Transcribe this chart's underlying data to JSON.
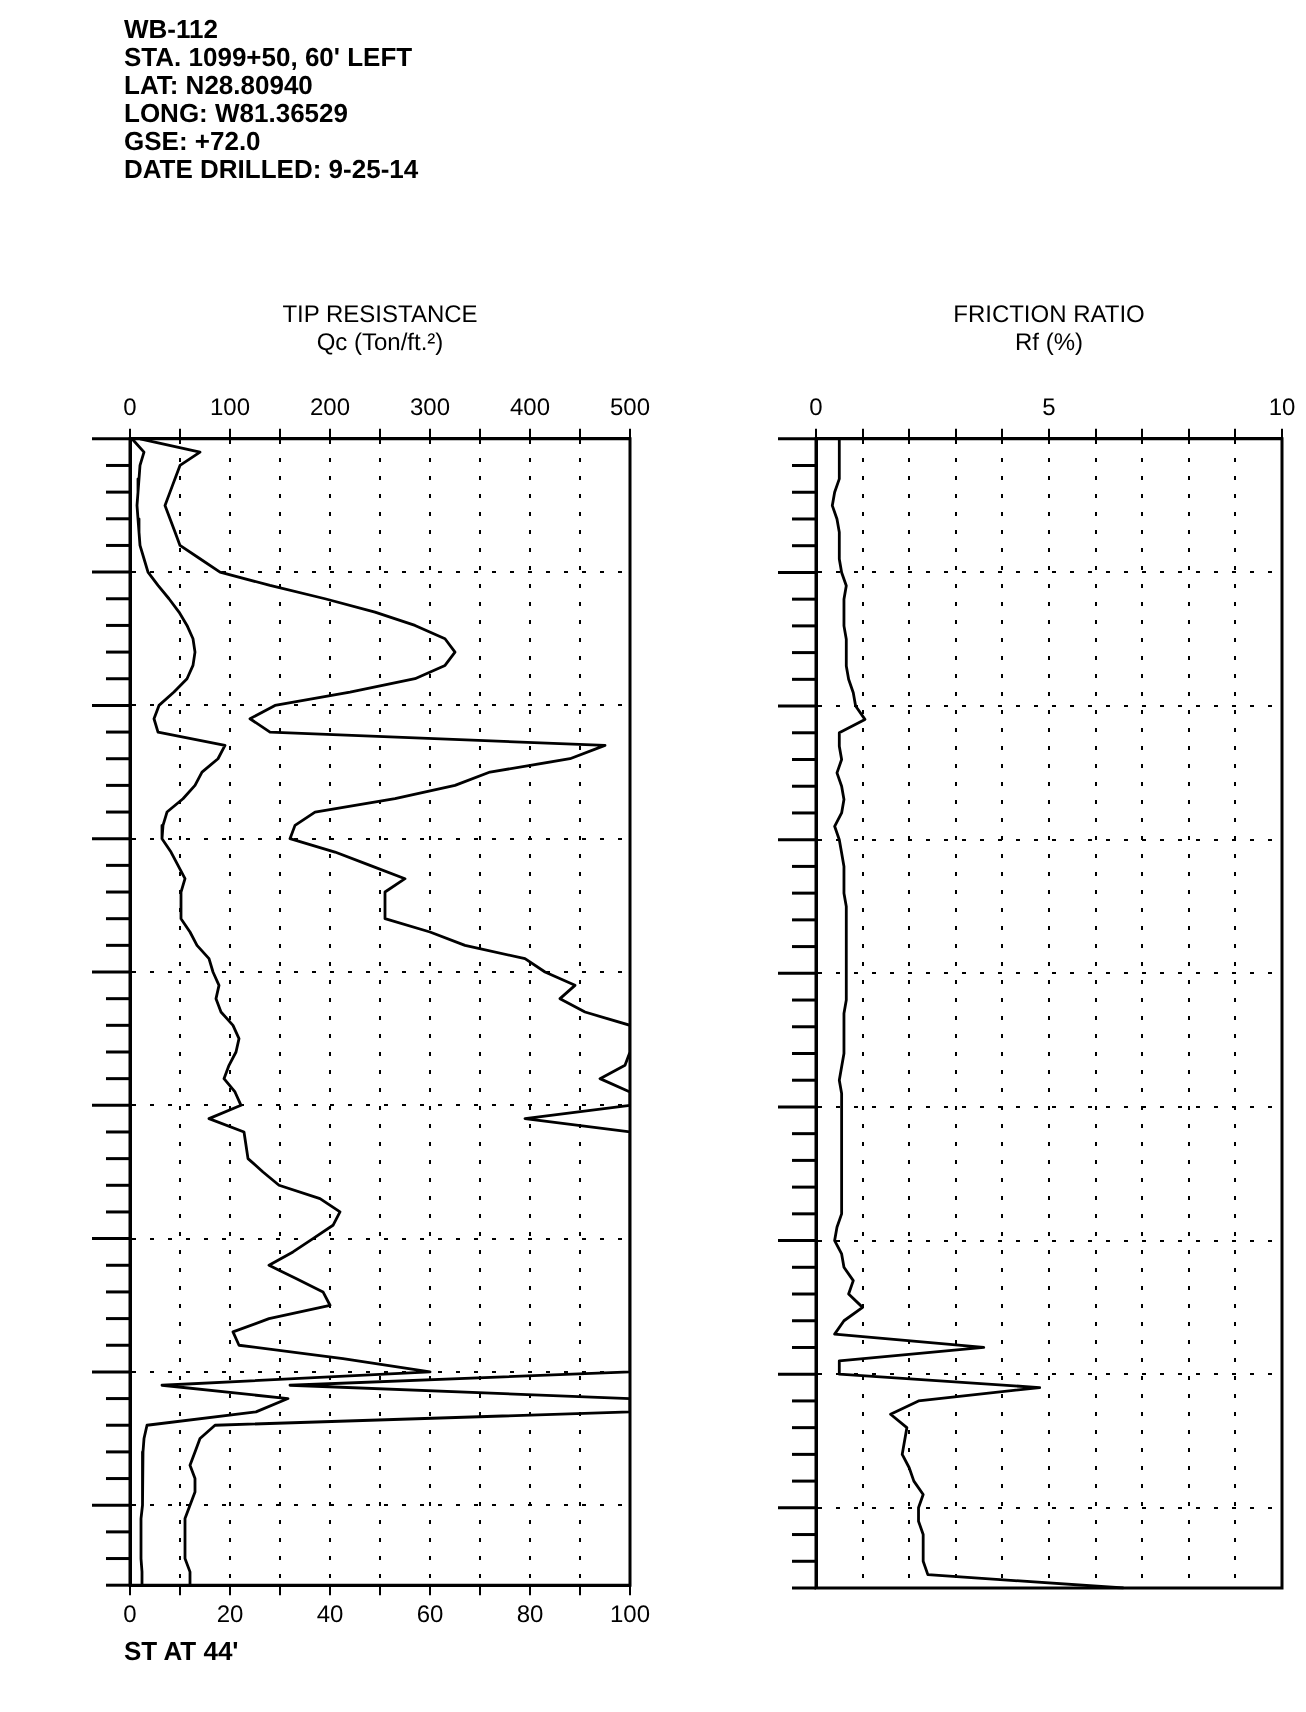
{
  "chart_data": [
    {
      "type": "line",
      "title": "TIP RESISTANCE",
      "subtitle": "Qc (Ton/ft.²)",
      "orientation": "horizontal",
      "tick_labels": "x",
      "grid": true,
      "categories": [
        null,
        null,
        null,
        null,
        null,
        null,
        null,
        null,
        null,
        null,
        null,
        null,
        null,
        null,
        null,
        null,
        null,
        null,
        null,
        null,
        null,
        null,
        null,
        null,
        null,
        null,
        null,
        null,
        null,
        null,
        null,
        null,
        null,
        null,
        null,
        null,
        null,
        null,
        null,
        null,
        null,
        null,
        null,
        null,
        null,
        null,
        null,
        null,
        null,
        null,
        null,
        null,
        null,
        null,
        null,
        null,
        null,
        null,
        null,
        null,
        null,
        null,
        null,
        null,
        null,
        null,
        null,
        null,
        null,
        null,
        null,
        null,
        null,
        null,
        null,
        null,
        null,
        null,
        null,
        null,
        null,
        null,
        null,
        null,
        null,
        null,
        null
      ],
      "xlim": [
        0,
        500
      ],
      "xticks": [
        0,
        {
          "value": 50,
          "label": null
        },
        100,
        {
          "value": 150,
          "label": null
        },
        200,
        {
          "value": 250,
          "label": null
        },
        300,
        {
          "value": 350,
          "label": null
        },
        400,
        {
          "value": 450,
          "label": null
        },
        500
      ],
      "x2lim": [
        0,
        100
      ],
      "x2ticks": [
        0,
        {
          "value": 10,
          "label": null
        },
        20,
        {
          "value": 30,
          "label": null
        },
        40,
        {
          "value": 50,
          "label": null
        },
        60,
        {
          "value": 70,
          "label": null
        },
        80,
        {
          "value": 90,
          "label": null
        },
        100
      ],
      "series": [
        {
          "color": "#000000",
          "values": [
            2,
            14,
            10,
            9,
            8,
            7,
            8,
            9,
            10,
            14,
            18,
            28,
            39,
            49,
            57,
            63,
            65,
            63,
            57,
            44,
            29,
            24,
            28,
            95,
            88,
            72,
            65,
            53,
            37,
            33,
            32,
            41,
            48,
            55,
            51,
            51,
            51,
            60,
            67,
            79,
            83,
            89,
            86,
            91,
            103,
            109,
            106,
            99,
            94,
            105,
            111,
            79,
            114,
            116,
            118,
            133,
            149,
            190,
            210,
            203,
            183,
            163,
            139,
            166,
            193,
            200,
            139,
            103,
            109,
            213,
            300,
            32,
            158,
            126,
            17,
            14,
            13,
            12,
            13,
            13,
            12,
            11,
            11,
            11,
            11,
            12,
            12
          ]
        },
        {
          "color": "#000000",
          "axis": "x2",
          "values": [
            2,
            14,
            10,
            9,
            8,
            7,
            8,
            9,
            10,
            14,
            18,
            28,
            39,
            49,
            57,
            63,
            65,
            63,
            57,
            44,
            29,
            24,
            28,
            95,
            88,
            72,
            65,
            53,
            37,
            33,
            32,
            41,
            48,
            55,
            51,
            51,
            51,
            60,
            67,
            79,
            83,
            89,
            86,
            91,
            100,
            100,
            100,
            99,
            94,
            100,
            100,
            79,
            100,
            100,
            100,
            100,
            100,
            100,
            100,
            100,
            100,
            100,
            100,
            100,
            100,
            100,
            100,
            100,
            100,
            100,
            100,
            32,
            100,
            100,
            17,
            14,
            13,
            12,
            13,
            13,
            12,
            11,
            11,
            11,
            11,
            12,
            12
          ]
        }
      ],
      "annotations": [
        "WB-112",
        "STA. 1099+50, 60' LEFT",
        "LAT: N28.80940",
        "LONG: W81.36529",
        "GSE: +72.0",
        "DATE DRILLED: 9-25-14",
        "ST AT 44'"
      ]
    },
    {
      "type": "line",
      "title": "FRICTION RATIO",
      "subtitle": "Rf (%)",
      "orientation": "horizontal",
      "tick_labels": "x",
      "grid": true,
      "categories": [
        null,
        null,
        null,
        null,
        null,
        null,
        null,
        null,
        null,
        null,
        null,
        null,
        null,
        null,
        null,
        null,
        null,
        null,
        null,
        null,
        null,
        null,
        null,
        null,
        null,
        null,
        null,
        null,
        null,
        null,
        null,
        null,
        null,
        null,
        null,
        null,
        null,
        null,
        null,
        null,
        null,
        null,
        null,
        null,
        null,
        null,
        null,
        null,
        null,
        null,
        null,
        null,
        null,
        null,
        null,
        null,
        null,
        null,
        null,
        null,
        null,
        null,
        null,
        null,
        null,
        null,
        null,
        null,
        null,
        null,
        null,
        null,
        null,
        null,
        null,
        null,
        null,
        null,
        null,
        null,
        null,
        null,
        null,
        null,
        null,
        null,
        null
      ],
      "xlim": [
        0,
        10
      ],
      "xticks": [
        0,
        {
          "value": 1,
          "label": null
        },
        {
          "value": 2,
          "label": null
        },
        {
          "value": 3,
          "label": null
        },
        {
          "value": 4,
          "label": null
        },
        5,
        {
          "value": 6,
          "label": null
        },
        {
          "value": 7,
          "label": null
        },
        {
          "value": 8,
          "label": null
        },
        {
          "value": 9,
          "label": null
        },
        10
      ],
      "series": [
        {
          "color": "#000000",
          "values": [
            0.5,
            0.5,
            0.5,
            0.5,
            0.4,
            0.35,
            0.45,
            0.5,
            0.5,
            0.5,
            0.55,
            0.65,
            0.6,
            0.6,
            0.6,
            0.65,
            0.65,
            0.65,
            0.7,
            0.8,
            0.85,
            1.05,
            0.5,
            0.5,
            0.55,
            0.45,
            0.55,
            0.6,
            0.55,
            0.4,
            0.5,
            0.55,
            0.6,
            0.6,
            0.6,
            0.65,
            0.65,
            0.65,
            0.65,
            0.65,
            0.65,
            0.65,
            0.65,
            0.6,
            0.6,
            0.6,
            0.6,
            0.55,
            0.5,
            0.55,
            0.55,
            0.55,
            0.55,
            0.55,
            0.55,
            0.55,
            0.55,
            0.55,
            0.55,
            0.45,
            0.4,
            0.55,
            0.6,
            0.8,
            0.7,
            1.0,
            0.6,
            0.4,
            3.6,
            0.5,
            0.5,
            4.8,
            2.2,
            1.6,
            1.95,
            1.9,
            1.85,
            2.0,
            2.1,
            2.3,
            2.2,
            2.2,
            2.3,
            2.3,
            2.3,
            2.4,
            6.6
          ]
        }
      ]
    }
  ]
}
